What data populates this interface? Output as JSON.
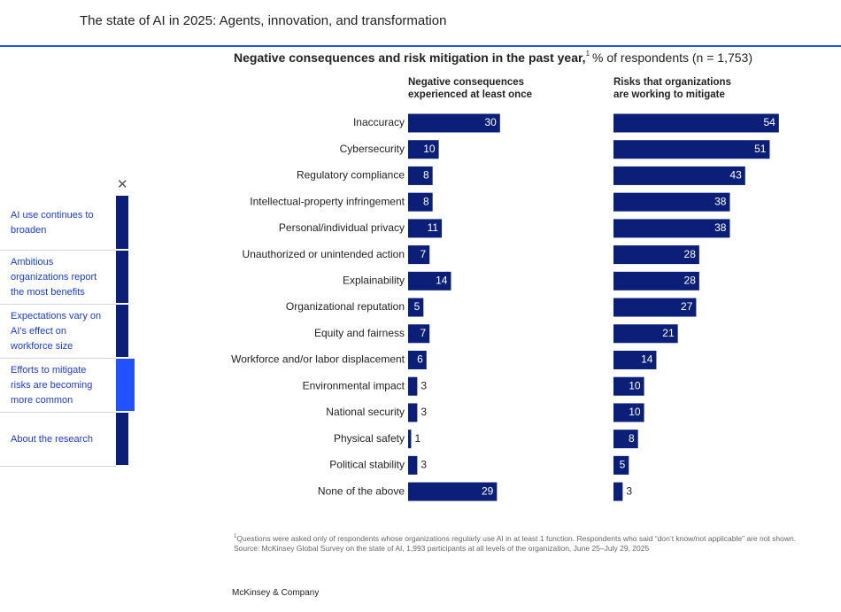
{
  "header": {
    "title": "The state of AI in 2025: Agents, innovation, and transformation"
  },
  "nav": {
    "items": [
      "AI use continues to broaden",
      "Ambitious organizations report the most benefits",
      "Expectations vary on AI's effect on workforce size",
      "Efforts to mitigate risks are becoming more common",
      "About the research"
    ],
    "active": 3
  },
  "chart_data": {
    "type": "bar",
    "orientation": "horizontal",
    "title": "Negative consequences and risk mitigation in the past year,",
    "title_note": "1",
    "subtitle": "% of respondents (n = 1,753)",
    "categories": [
      "Inaccuracy",
      "Cybersecurity",
      "Regulatory compliance",
      "Intellectual-property infringement",
      "Personal/individual privacy",
      "Unauthorized or unintended action",
      "Explainability",
      "Organizational reputation",
      "Equity and fairness",
      "Workforce and/or labor displacement",
      "Environmental impact",
      "National security",
      "Physical safety",
      "Political stability",
      "None of the above"
    ],
    "series": [
      {
        "name": "Negative consequences experienced at least once",
        "color": "#0b1f78",
        "values": [
          30,
          10,
          8,
          8,
          11,
          7,
          14,
          5,
          7,
          6,
          3,
          3,
          1,
          3,
          29
        ]
      },
      {
        "name": "Risks that organizations are working to mitigate",
        "color": "#0b1f78",
        "values": [
          54,
          51,
          43,
          38,
          38,
          28,
          28,
          27,
          21,
          14,
          10,
          10,
          8,
          5,
          3
        ]
      }
    ]
  },
  "footnotes": {
    "marker": "1",
    "note": "Questions were asked only of respondents whose organizations regularly use AI in at least 1 function. Respondents who said “don’t know/not applicable” are not shown.",
    "source": "Source: McKinsey Global Survey on the state of AI, 1,993 participants at all levels of the organization, June 25–July 29, 2025"
  },
  "footer": {
    "brand": "McKinsey & Company"
  }
}
